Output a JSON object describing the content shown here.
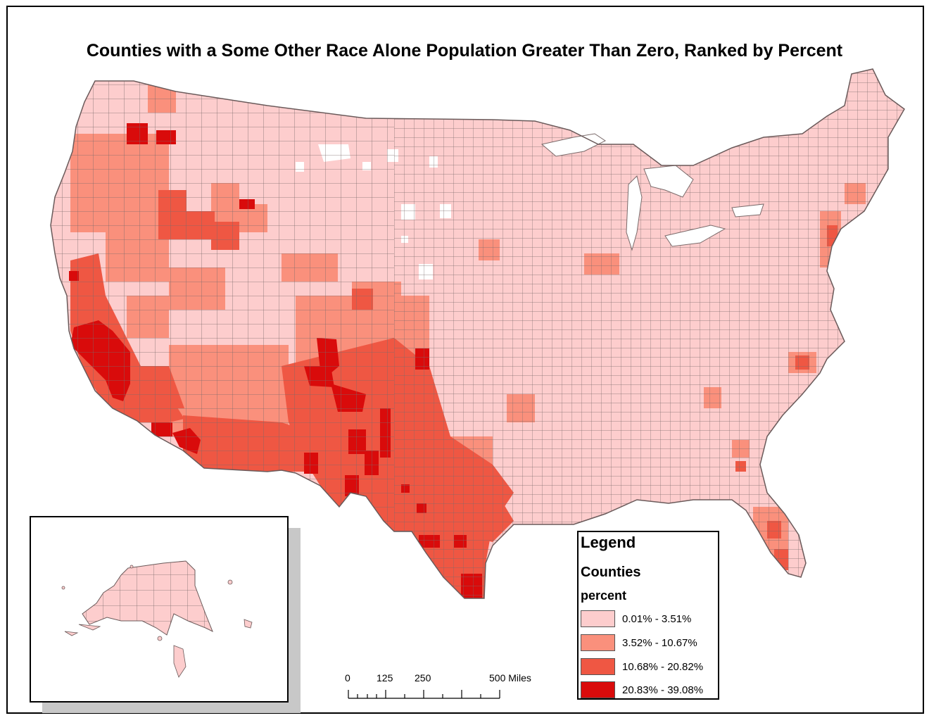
{
  "title": "Counties with a Some Other Race Alone Population Greater Than Zero, Ranked by Percent",
  "colors": {
    "class1": "#fdcdcd",
    "class2": "#fa907c",
    "class3": "#ef5743",
    "class4": "#d90b0b",
    "border": "#7a6a6a",
    "nodata": "#ffffff"
  },
  "legend": {
    "title": "Legend",
    "layer": "Counties",
    "field": "percent",
    "items": [
      {
        "label": "0.01% - 3.51%",
        "color": "#fdcdcd"
      },
      {
        "label": "3.52% - 10.67%",
        "color": "#fa907c"
      },
      {
        "label": "10.68% - 20.82%",
        "color": "#ef5743"
      },
      {
        "label": "20.83% - 39.08%",
        "color": "#d90b0b"
      }
    ]
  },
  "scale_bar": {
    "labels": [
      "0",
      "125",
      "250",
      "500 Miles"
    ]
  },
  "inset": {
    "region": "Alaska"
  }
}
